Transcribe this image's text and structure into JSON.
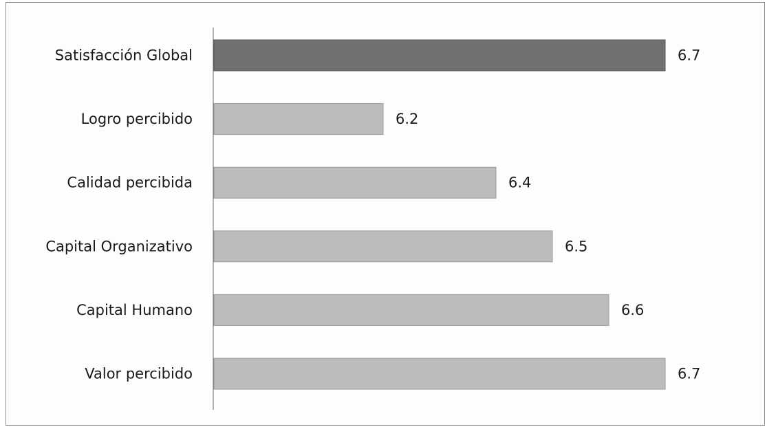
{
  "chart_data": {
    "type": "bar",
    "orientation": "horizontal",
    "categories": [
      "Satisfacción Global",
      "Logro percibido",
      "Calidad percibida",
      "Capital Organizativo",
      "Capital Humano",
      "Valor percibido"
    ],
    "values": [
      6.7,
      6.2,
      6.4,
      6.5,
      6.6,
      6.7
    ],
    "value_labels": [
      "6.7",
      "6.2",
      "6.4",
      "6.5",
      "6.6",
      "6.7"
    ],
    "xlim": [
      5.9,
      6.75
    ],
    "title": "",
    "xlabel": "",
    "ylabel": "",
    "grid": false,
    "legend": "none",
    "highlight_index": 0,
    "colors": {
      "highlight": "#707070",
      "highlight_edge": "#555555",
      "bar": "#bcbcbc",
      "bar_edge": "#9a9a9a",
      "axis": "#6a6a6a"
    }
  }
}
